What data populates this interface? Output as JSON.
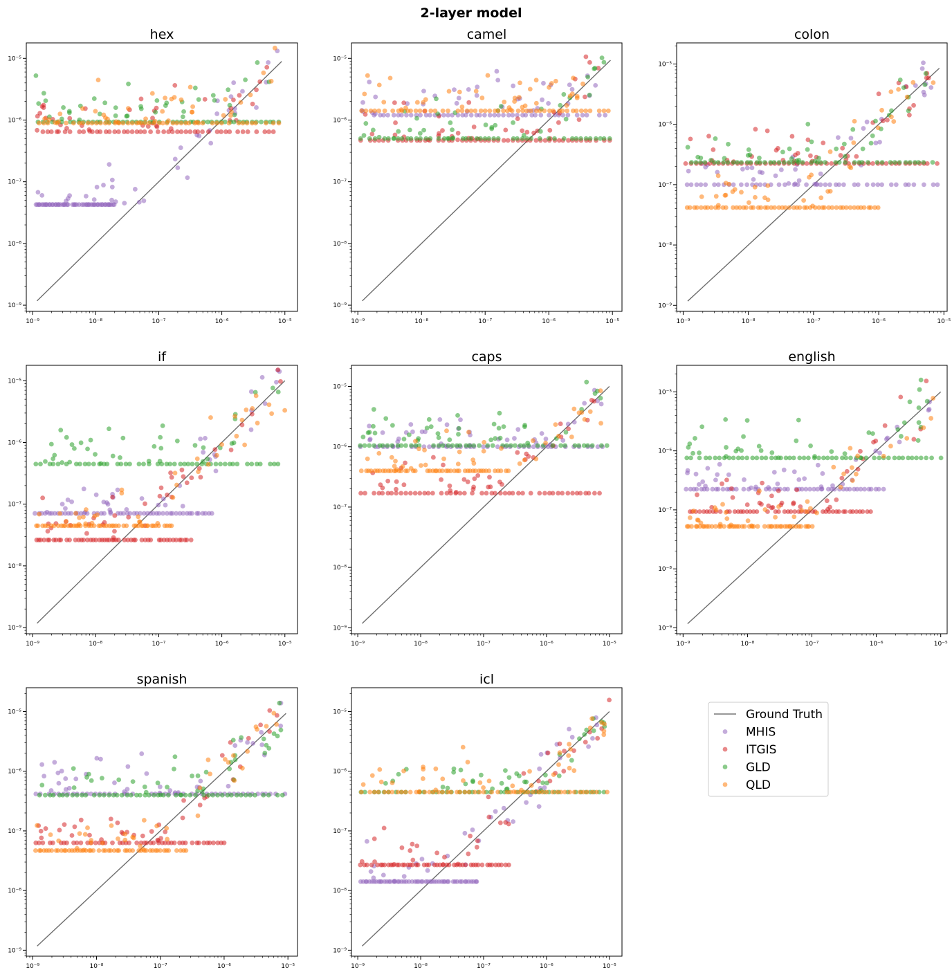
{
  "figure": {
    "title": "2-layer model",
    "legend": {
      "placement": "empty-grid-cell",
      "items": [
        {
          "label": "Ground Truth",
          "kind": "line",
          "color": "#777777"
        },
        {
          "label": "MHIS",
          "kind": "dot",
          "color": "#9467bd"
        },
        {
          "label": "ITGIS",
          "kind": "dot",
          "color": "#d62728"
        },
        {
          "label": "GLD",
          "kind": "dot",
          "color": "#2ca02c"
        },
        {
          "label": "QLD",
          "kind": "dot",
          "color": "#ff7f0e"
        }
      ]
    }
  },
  "chart_data": [
    {
      "type": "scatter",
      "title": "hex",
      "xscale": "log",
      "yscale": "log",
      "xlim_exp": [
        -9.1,
        -4.8
      ],
      "ylim_exp": [
        -9.1,
        -4.75
      ],
      "x_ticks": [
        "10⁻⁹",
        "10⁻⁸",
        "10⁻⁷",
        "10⁻⁶",
        "10⁻⁵"
      ],
      "y_ticks": [
        "10⁻⁹",
        "10⁻⁸",
        "10⁻⁷",
        "10⁻⁶",
        "10⁻⁵"
      ],
      "ground_truth_exp": [
        -8.93,
        -5.05
      ],
      "series": [
        {
          "name": "MHIS",
          "color": "#9467bd",
          "floor_exp": -7.37,
          "floor_x_exp": [
            -8.95,
            -7.7
          ]
        },
        {
          "name": "ITGIS",
          "color": "#d62728",
          "floor_exp": -6.19,
          "floor_x_exp": [
            -8.9,
            -5.1
          ]
        },
        {
          "name": "GLD",
          "color": "#2ca02c",
          "floor_exp": -6.03,
          "floor_x_exp": [
            -8.9,
            -5.1
          ]
        },
        {
          "name": "QLD",
          "color": "#ff7f0e",
          "floor_exp": -6.05,
          "floor_x_exp": [
            -8.9,
            -5.1
          ]
        }
      ]
    },
    {
      "type": "scatter",
      "title": "camel",
      "xscale": "log",
      "yscale": "log",
      "xlim_exp": [
        -9.1,
        -4.85
      ],
      "ylim_exp": [
        -9.1,
        -4.75
      ],
      "x_ticks": [
        "10⁻⁹",
        "10⁻⁸",
        "10⁻⁷",
        "10⁻⁶",
        "10⁻⁵"
      ],
      "y_ticks": [
        "10⁻⁹",
        "10⁻⁸",
        "10⁻⁷",
        "10⁻⁶",
        "10⁻⁵"
      ],
      "ground_truth_exp": [
        -8.93,
        -5.03
      ],
      "series": [
        {
          "name": "MHIS",
          "color": "#9467bd",
          "floor_exp": -5.92,
          "floor_x_exp": [
            -8.95,
            -5.05
          ]
        },
        {
          "name": "ITGIS",
          "color": "#d62728",
          "floor_exp": -6.33,
          "floor_x_exp": [
            -8.95,
            -5.05
          ]
        },
        {
          "name": "GLD",
          "color": "#2ca02c",
          "floor_exp": -6.3,
          "floor_x_exp": [
            -8.95,
            -5.05
          ]
        },
        {
          "name": "QLD",
          "color": "#ff7f0e",
          "floor_exp": -5.85,
          "floor_x_exp": [
            -8.95,
            -5.05
          ]
        }
      ]
    },
    {
      "type": "scatter",
      "title": "colon",
      "xscale": "log",
      "yscale": "log",
      "xlim_exp": [
        -9.1,
        -4.95
      ],
      "ylim_exp": [
        -9.1,
        -4.65
      ],
      "x_ticks": [
        "10⁻⁹",
        "10⁻⁸",
        "10⁻⁷",
        "10⁻⁶",
        "10⁻⁵"
      ],
      "y_ticks": [
        "10⁻⁹",
        "10⁻⁸",
        "10⁻⁷",
        "10⁻⁶",
        "10⁻⁵"
      ],
      "ground_truth_exp": [
        -8.93,
        -5.07
      ],
      "series": [
        {
          "name": "MHIS",
          "color": "#9467bd",
          "floor_exp": -7.0,
          "floor_x_exp": [
            -8.95,
            -5.1
          ]
        },
        {
          "name": "ITGIS",
          "color": "#d62728",
          "floor_exp": -6.65,
          "floor_x_exp": [
            -8.95,
            -5.1
          ]
        },
        {
          "name": "GLD",
          "color": "#2ca02c",
          "floor_exp": -6.63,
          "floor_x_exp": [
            -8.95,
            -5.1
          ]
        },
        {
          "name": "QLD",
          "color": "#ff7f0e",
          "floor_exp": -7.38,
          "floor_x_exp": [
            -8.95,
            -6.0
          ]
        }
      ]
    },
    {
      "type": "scatter",
      "title": "if",
      "xscale": "log",
      "yscale": "log",
      "xlim_exp": [
        -9.1,
        -4.8
      ],
      "ylim_exp": [
        -9.1,
        -4.75
      ],
      "x_ticks": [
        "10⁻⁹",
        "10⁻⁸",
        "10⁻⁷",
        "10⁻⁶",
        "10⁻⁵"
      ],
      "y_ticks": [
        "10⁻⁹",
        "10⁻⁸",
        "10⁻⁷",
        "10⁻⁶",
        "10⁻⁵"
      ],
      "ground_truth_exp": [
        -8.93,
        -5.0
      ],
      "series": [
        {
          "name": "MHIS",
          "color": "#9467bd",
          "floor_exp": -7.15,
          "floor_x_exp": [
            -8.95,
            -6.15
          ]
        },
        {
          "name": "ITGIS",
          "color": "#d62728",
          "floor_exp": -7.58,
          "floor_x_exp": [
            -8.95,
            -6.5
          ]
        },
        {
          "name": "GLD",
          "color": "#2ca02c",
          "floor_exp": -6.35,
          "floor_x_exp": [
            -8.95,
            -5.1
          ]
        },
        {
          "name": "QLD",
          "color": "#ff7f0e",
          "floor_exp": -7.35,
          "floor_x_exp": [
            -8.95,
            -6.8
          ]
        }
      ]
    },
    {
      "type": "scatter",
      "title": "caps",
      "xscale": "log",
      "yscale": "log",
      "xlim_exp": [
        -9.1,
        -4.8
      ],
      "ylim_exp": [
        -9.1,
        -4.65
      ],
      "x_ticks": [
        "10⁻⁹",
        "10⁻⁸",
        "10⁻⁷",
        "10⁻⁶",
        "10⁻⁵"
      ],
      "y_ticks": [
        "10⁻⁹",
        "10⁻⁸",
        "10⁻⁷",
        "10⁻⁶",
        "10⁻⁵"
      ],
      "ground_truth_exp": [
        -8.93,
        -5.0
      ],
      "series": [
        {
          "name": "MHIS",
          "color": "#9467bd",
          "floor_exp": -6.0,
          "floor_x_exp": [
            -8.95,
            -5.05
          ]
        },
        {
          "name": "ITGIS",
          "color": "#d62728",
          "floor_exp": -6.77,
          "floor_x_exp": [
            -8.95,
            -5.1
          ]
        },
        {
          "name": "GLD",
          "color": "#2ca02c",
          "floor_exp": -5.98,
          "floor_x_exp": [
            -8.95,
            -5.05
          ]
        },
        {
          "name": "QLD",
          "color": "#ff7f0e",
          "floor_exp": -6.4,
          "floor_x_exp": [
            -8.95,
            -6.6
          ]
        }
      ]
    },
    {
      "type": "scatter",
      "title": "english",
      "xscale": "log",
      "yscale": "log",
      "xlim_exp": [
        -9.1,
        -4.9
      ],
      "ylim_exp": [
        -9.1,
        -4.55
      ],
      "x_ticks": [
        "10⁻⁹",
        "10⁻⁸",
        "10⁻⁷",
        "10⁻⁶",
        "10⁻⁵"
      ],
      "y_ticks": [
        "10⁻⁹",
        "10⁻⁸",
        "10⁻⁷",
        "10⁻⁶",
        "10⁻⁵"
      ],
      "ground_truth_exp": [
        -8.93,
        -5.0
      ],
      "series": [
        {
          "name": "MHIS",
          "color": "#9467bd",
          "floor_exp": -6.65,
          "floor_x_exp": [
            -8.95,
            -5.9
          ]
        },
        {
          "name": "ITGIS",
          "color": "#d62728",
          "floor_exp": -7.03,
          "floor_x_exp": [
            -8.95,
            -6.1
          ]
        },
        {
          "name": "GLD",
          "color": "#2ca02c",
          "floor_exp": -6.12,
          "floor_x_exp": [
            -8.95,
            -5.0
          ]
        },
        {
          "name": "QLD",
          "color": "#ff7f0e",
          "floor_exp": -7.28,
          "floor_x_exp": [
            -8.95,
            -7.0
          ]
        }
      ]
    },
    {
      "type": "scatter",
      "title": "spanish",
      "xscale": "log",
      "yscale": "log",
      "xlim_exp": [
        -9.1,
        -4.85
      ],
      "ylim_exp": [
        -9.1,
        -4.6
      ],
      "x_ticks": [
        "10⁻⁹",
        "10⁻⁸",
        "10⁻⁷",
        "10⁻⁶",
        "10⁻⁵"
      ],
      "y_ticks": [
        "10⁻⁹",
        "10⁻⁸",
        "10⁻⁷",
        "10⁻⁶",
        "10⁻⁵"
      ],
      "ground_truth_exp": [
        -8.93,
        -5.03
      ],
      "series": [
        {
          "name": "MHIS",
          "color": "#9467bd",
          "floor_exp": -6.38,
          "floor_x_exp": [
            -8.95,
            -5.05
          ]
        },
        {
          "name": "ITGIS",
          "color": "#d62728",
          "floor_exp": -7.2,
          "floor_x_exp": [
            -8.95,
            -6.0
          ]
        },
        {
          "name": "GLD",
          "color": "#2ca02c",
          "floor_exp": -6.4,
          "floor_x_exp": [
            -8.95,
            -5.1
          ]
        },
        {
          "name": "QLD",
          "color": "#ff7f0e",
          "floor_exp": -7.33,
          "floor_x_exp": [
            -8.95,
            -6.6
          ]
        }
      ]
    },
    {
      "type": "scatter",
      "title": "icl",
      "xscale": "log",
      "yscale": "log",
      "xlim_exp": [
        -9.1,
        -4.8
      ],
      "ylim_exp": [
        -9.1,
        -4.6
      ],
      "x_ticks": [
        "10⁻⁹",
        "10⁻⁸",
        "10⁻⁷",
        "10⁻⁶",
        "10⁻⁵"
      ],
      "y_ticks": [
        "10⁻⁹",
        "10⁻⁸",
        "10⁻⁷",
        "10⁻⁶",
        "10⁻⁵"
      ],
      "ground_truth_exp": [
        -8.93,
        -5.0
      ],
      "series": [
        {
          "name": "MHIS",
          "color": "#9467bd",
          "floor_exp": -7.85,
          "floor_x_exp": [
            -8.95,
            -7.1
          ]
        },
        {
          "name": "ITGIS",
          "color": "#d62728",
          "floor_exp": -7.57,
          "floor_x_exp": [
            -8.95,
            -6.6
          ]
        },
        {
          "name": "GLD",
          "color": "#2ca02c",
          "floor_exp": -6.35,
          "floor_x_exp": [
            -8.95,
            -5.1
          ]
        },
        {
          "name": "QLD",
          "color": "#ff7f0e",
          "floor_exp": -6.35,
          "floor_x_exp": [
            -8.95,
            -5.05
          ]
        }
      ]
    }
  ]
}
